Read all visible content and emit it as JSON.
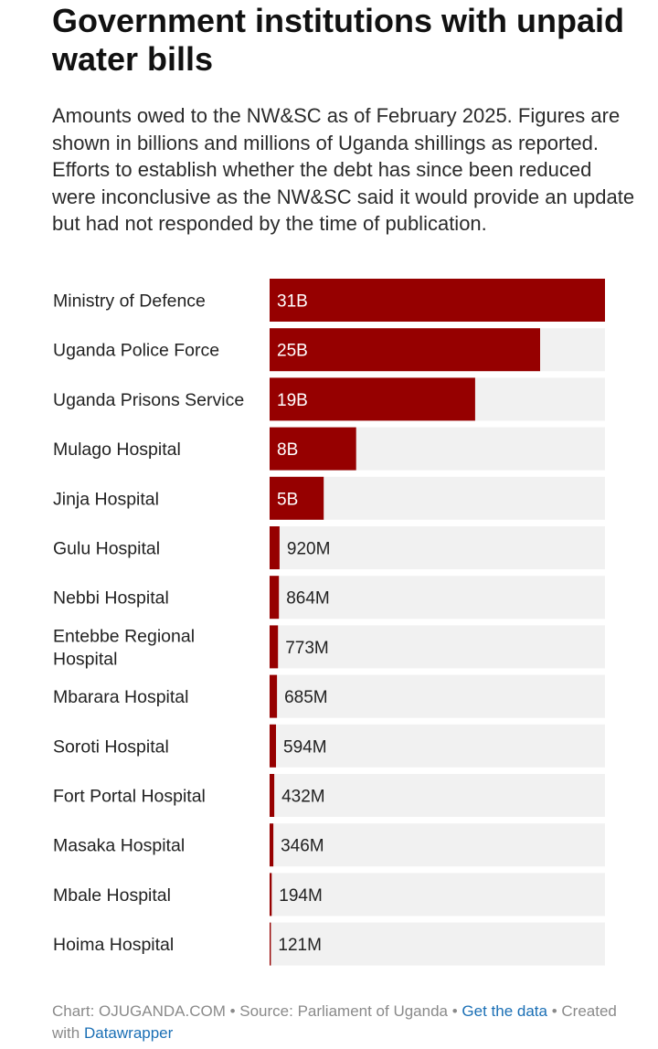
{
  "title": "Government institutions with unpaid water bills",
  "description": "Amounts owed to the NW&SC as of February 2025. Figures are shown in billions and millions of Uganda shillings as reported. Efforts to establish whether the debt has since been reduced were inconclusive as the NW&SC said it would provide an update but had not responded by the time of publication.",
  "colors": {
    "bar": "#960000",
    "track": "#f1f1f1",
    "label_on_bar": "#ffffff",
    "label_off_bar": "#222222"
  },
  "chart_data": {
    "type": "bar",
    "orientation": "horizontal",
    "unit": "Uganda shillings",
    "xlim": [
      0,
      31000000000
    ],
    "categories": [
      "Ministry of Defence",
      "Uganda Police Force",
      "Uganda Prisons Service",
      "Mulago Hospital",
      "Jinja Hospital",
      "Gulu Hospital",
      "Nebbi Hospital",
      "Entebbe Regional Hospital",
      "Mbarara Hospital",
      "Soroti Hospital",
      "Fort Portal Hospital",
      "Masaka Hospital",
      "Mbale Hospital",
      "Hoima Hospital"
    ],
    "category_lines": [
      [
        "Ministry of Defence"
      ],
      [
        "Uganda Police Force"
      ],
      [
        "Uganda Prisons Service"
      ],
      [
        "Mulago Hospital"
      ],
      [
        "Jinja Hospital"
      ],
      [
        "Gulu Hospital"
      ],
      [
        "Nebbi Hospital"
      ],
      [
        "Entebbe Regional",
        "Hospital"
      ],
      [
        "Mbarara Hospital"
      ],
      [
        "Soroti Hospital"
      ],
      [
        "Fort Portal Hospital"
      ],
      [
        "Masaka Hospital"
      ],
      [
        "Mbale Hospital"
      ],
      [
        "Hoima Hospital"
      ]
    ],
    "values": [
      31000000000,
      25000000000,
      19000000000,
      8000000000,
      5000000000,
      920000000,
      864000000,
      773000000,
      685000000,
      594000000,
      432000000,
      346000000,
      194000000,
      121000000
    ],
    "value_labels": [
      "31B",
      "25B",
      "19B",
      "8B",
      "5B",
      "920M",
      "864M",
      "773M",
      "685M",
      "594M",
      "432M",
      "346M",
      "194M",
      "121M"
    ]
  },
  "footer": {
    "prefix": "Chart: OJUGANDA.COM • Source: Parliament of Uganda • ",
    "get_data_link": "Get the data",
    "middle": " • Created with ",
    "datawrapper_link": "Datawrapper"
  }
}
